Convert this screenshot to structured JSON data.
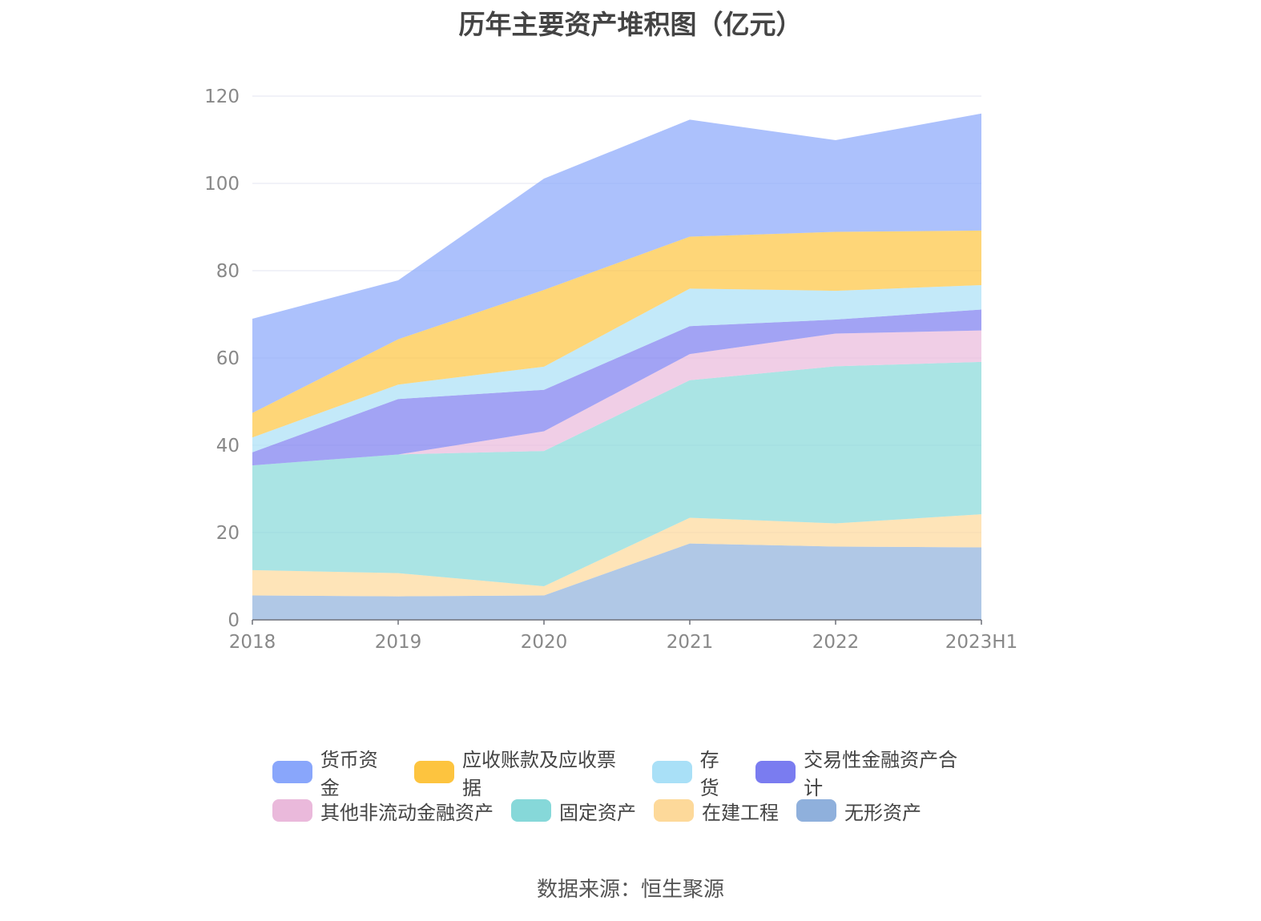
{
  "chart_data": {
    "type": "area",
    "stacked": true,
    "title": "历年主要资产堆积图（亿元）",
    "categories": [
      "2018",
      "2019",
      "2020",
      "2021",
      "2022",
      "2023H1"
    ],
    "ylim": [
      0,
      120
    ],
    "yticks": [
      0,
      20,
      40,
      60,
      80,
      100,
      120
    ],
    "grid": true,
    "legend_position": "bottom",
    "series": [
      {
        "name": "无形资产",
        "color": "#8fb0dc",
        "values": [
          5.6,
          5.4,
          5.6,
          17.5,
          16.8,
          16.6
        ]
      },
      {
        "name": "在建工程",
        "color": "#fdd99a",
        "values": [
          5.8,
          5.3,
          2.1,
          5.9,
          5.3,
          7.6
        ]
      },
      {
        "name": "固定资产",
        "color": "#86d8d9",
        "values": [
          24.0,
          27.2,
          31.0,
          31.5,
          36.0,
          34.9
        ]
      },
      {
        "name": "其他非流动金融资产",
        "color": "#eab9db",
        "values": [
          0,
          0,
          4.5,
          6.0,
          7.5,
          7.2
        ]
      },
      {
        "name": "交易性金融资产合计",
        "color": "#7a7cf0",
        "values": [
          3.0,
          12.7,
          9.5,
          6.4,
          3.2,
          4.8
        ]
      },
      {
        "name": "存货",
        "color": "#a9e0f7",
        "values": [
          3.4,
          3.3,
          5.3,
          8.6,
          6.6,
          5.6
        ]
      },
      {
        "name": "应收账款及应收票据",
        "color": "#fdc43f",
        "values": [
          5.6,
          10.4,
          17.6,
          11.9,
          13.5,
          12.5
        ]
      },
      {
        "name": "货币资金",
        "color": "#89a6fb",
        "values": [
          21.6,
          13.5,
          25.5,
          26.8,
          21.0,
          26.8
        ]
      }
    ]
  },
  "legend": {
    "row1": [
      {
        "name": "货币资金",
        "color": "#89a6fb"
      },
      {
        "name": "应收账款及应收票据",
        "color": "#fdc43f"
      },
      {
        "name": "存货",
        "color": "#a9e0f7"
      },
      {
        "name": "交易性金融资产合计",
        "color": "#7a7cf0"
      }
    ],
    "row2": [
      {
        "name": "其他非流动金融资产",
        "color": "#eab9db"
      },
      {
        "name": "固定资产",
        "color": "#86d8d9"
      },
      {
        "name": "在建工程",
        "color": "#fdd99a"
      },
      {
        "name": "无形资产",
        "color": "#8fb0dc"
      }
    ]
  },
  "source": "数据来源：恒生聚源"
}
